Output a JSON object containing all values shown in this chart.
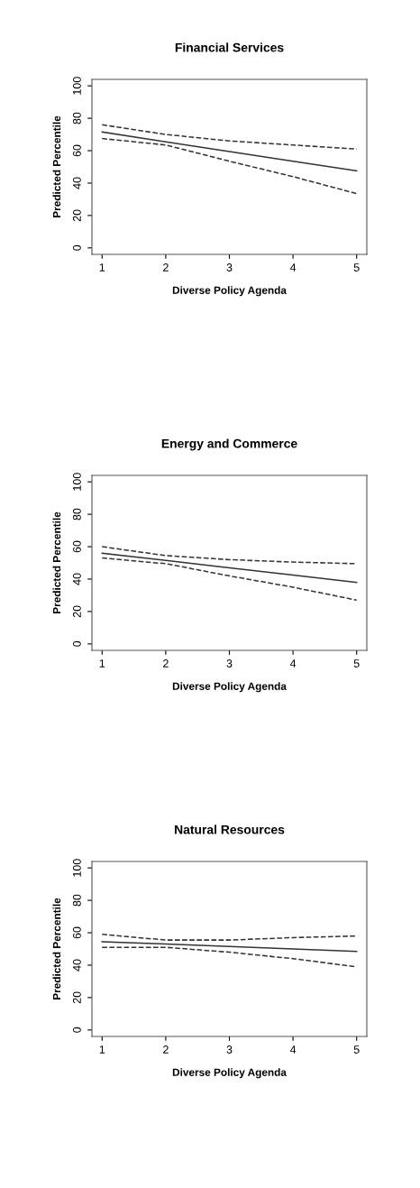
{
  "chart_data": [
    {
      "type": "line",
      "title": "Financial Services",
      "xlabel": "Diverse Policy Agenda",
      "ylabel": "Predicted Percentile",
      "x": [
        1,
        2,
        3,
        4,
        5
      ],
      "xlim": [
        0.84,
        5.16
      ],
      "xticks": [
        1,
        2,
        3,
        4,
        5
      ],
      "ylim": [
        -4,
        104
      ],
      "yticks": [
        0,
        20,
        40,
        60,
        80,
        100
      ],
      "grid": false,
      "legend": false,
      "series": [
        {
          "color": "#333333",
          "line_style": "solid",
          "values": [
            71.5,
            65.5,
            59.5,
            53.5,
            47.5
          ]
        },
        {
          "color": "#333333",
          "line_style": "dashed",
          "values": [
            76,
            70,
            66,
            63.5,
            61
          ]
        },
        {
          "color": "#333333",
          "line_style": "dashed",
          "values": [
            67.5,
            63.5,
            53.5,
            44,
            33.5
          ]
        }
      ]
    },
    {
      "type": "line",
      "title": "Energy and Commerce",
      "xlabel": "Diverse Policy Agenda",
      "ylabel": "Predicted Percentile",
      "x": [
        1,
        2,
        3,
        4,
        5
      ],
      "xlim": [
        0.84,
        5.16
      ],
      "xticks": [
        1,
        2,
        3,
        4,
        5
      ],
      "ylim": [
        -4,
        104
      ],
      "yticks": [
        0,
        20,
        40,
        60,
        80,
        100
      ],
      "grid": false,
      "legend": false,
      "series": [
        {
          "color": "#333333",
          "line_style": "solid",
          "values": [
            56,
            51.5,
            47,
            42.5,
            38
          ]
        },
        {
          "color": "#333333",
          "line_style": "dashed",
          "values": [
            60,
            54.5,
            52,
            50.5,
            49.5
          ]
        },
        {
          "color": "#333333",
          "line_style": "dashed",
          "values": [
            53,
            49.5,
            42,
            35,
            27
          ]
        }
      ]
    },
    {
      "type": "line",
      "title": "Natural Resources",
      "xlabel": "Diverse Policy Agenda",
      "ylabel": "Predicted Percentile",
      "x": [
        1,
        2,
        3,
        4,
        5
      ],
      "xlim": [
        0.84,
        5.16
      ],
      "xticks": [
        1,
        2,
        3,
        4,
        5
      ],
      "ylim": [
        -4,
        104
      ],
      "yticks": [
        0,
        20,
        40,
        60,
        80,
        100
      ],
      "grid": false,
      "legend": false,
      "series": [
        {
          "color": "#333333",
          "line_style": "solid",
          "values": [
            54.5,
            53,
            51.5,
            50,
            48.5
          ]
        },
        {
          "color": "#333333",
          "line_style": "dashed",
          "values": [
            59,
            55.5,
            55.5,
            57,
            58
          ]
        },
        {
          "color": "#333333",
          "line_style": "dashed",
          "values": [
            51,
            51,
            48,
            44,
            39
          ]
        }
      ]
    }
  ]
}
